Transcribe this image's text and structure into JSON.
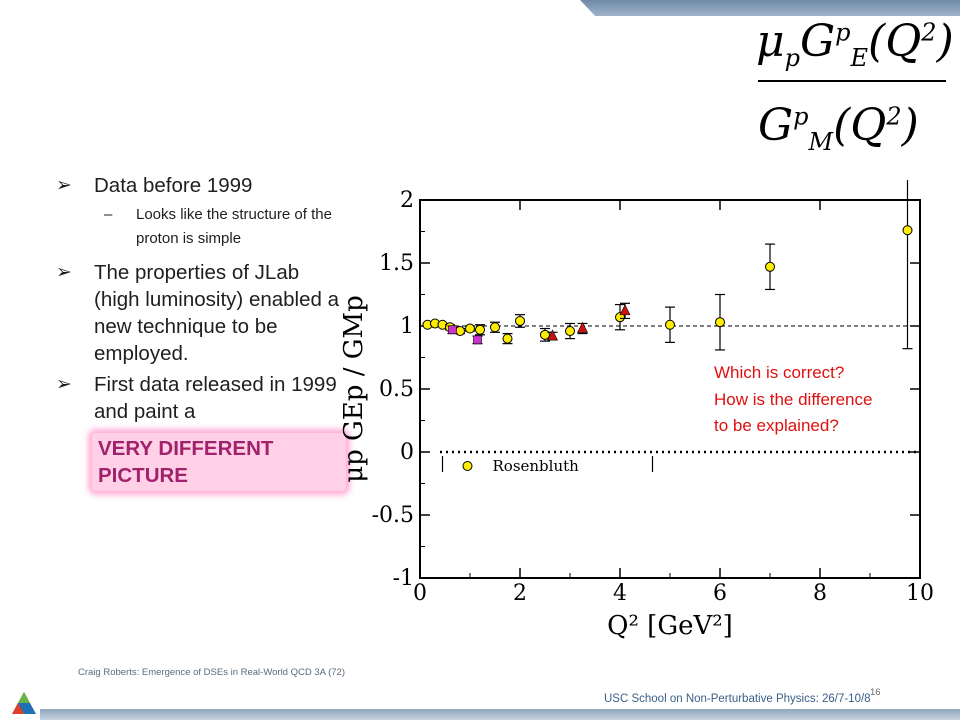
{
  "formula": {
    "numerator": {
      "mu": "μ",
      "mu_sub": "p",
      "g": "G",
      "g_sup": "p",
      "g_sub": "E",
      "arg_open": "(Q",
      "arg_sup": "2",
      "arg_close": ")"
    },
    "denominator": {
      "g": "G",
      "g_sup": "p",
      "g_sub": "M",
      "arg_open": "(Q",
      "arg_sup": "2",
      "arg_close": ")"
    }
  },
  "bullets": {
    "item1": "Data before 1999",
    "sub1": "Looks like the structure of the proton is simple",
    "item2": "The properties of JLab (high luminosity) enabled a new technique to be employed.",
    "item3": "First data released in 1999 and paint a",
    "highlight": "VERY DIFFERENT PICTURE"
  },
  "question": {
    "line1": "Which is correct?",
    "line2": "How is the difference",
    "line3": "to be explained?"
  },
  "footer": {
    "left": "Craig Roberts: Emergence of DSEs in Real-World QCD 3A (72)",
    "right": "USC School on Non-Perturbative Physics: 26/7-10/8",
    "page": "16"
  },
  "colors": {
    "top_band": "#7f98b4",
    "highlight": "#a0226c",
    "question": "#e01010",
    "rosenbluth_fill": "#ffee00",
    "triangle": "#cc1111",
    "square": "#cc33cc"
  },
  "chart_data": {
    "type": "scatter",
    "xlabel": "Q² [GeV²]",
    "ylabel": "μp GEp / GMp",
    "xlim": [
      0,
      10
    ],
    "ylim": [
      -1,
      2
    ],
    "x_ticks": [
      "0",
      "2",
      "4",
      "6",
      "8",
      "10"
    ],
    "y_ticks": [
      "-1",
      "-0.5",
      "0",
      "0.5",
      "1",
      "1.5",
      "2"
    ],
    "legend": [
      "Rosenbluth"
    ],
    "reference_line": 1,
    "series": [
      {
        "name": "Rosenbluth",
        "marker": "circle",
        "points": [
          [
            0.15,
            1.01
          ],
          [
            0.3,
            1.02
          ],
          [
            0.45,
            1.01
          ],
          [
            0.6,
            0.99
          ],
          [
            0.8,
            0.96
          ],
          [
            1.0,
            0.98
          ],
          [
            1.2,
            0.97
          ],
          [
            1.5,
            0.99
          ],
          [
            1.75,
            0.9
          ],
          [
            2.0,
            1.04
          ],
          [
            2.5,
            0.93
          ],
          [
            3.0,
            0.96
          ],
          [
            4.0,
            1.07
          ],
          [
            5.0,
            1.01
          ],
          [
            6.0,
            1.03
          ],
          [
            7.0,
            1.47
          ],
          [
            9.75,
            1.76
          ]
        ],
        "errors": [
          0.01,
          0.01,
          0.01,
          0.02,
          0.02,
          0.02,
          0.04,
          0.04,
          0.04,
          0.05,
          0.05,
          0.06,
          0.1,
          0.14,
          0.22,
          0.18,
          0.94
        ]
      },
      {
        "marker": "triangle",
        "points": [
          [
            2.65,
            0.92
          ],
          [
            3.25,
            0.98
          ],
          [
            4.1,
            1.12
          ]
        ],
        "errors": [
          0.03,
          0.04,
          0.06
        ]
      },
      {
        "marker": "square",
        "points": [
          [
            0.65,
            0.97
          ],
          [
            1.15,
            0.89
          ]
        ],
        "errors": [
          0.03,
          0.03
        ]
      }
    ]
  }
}
